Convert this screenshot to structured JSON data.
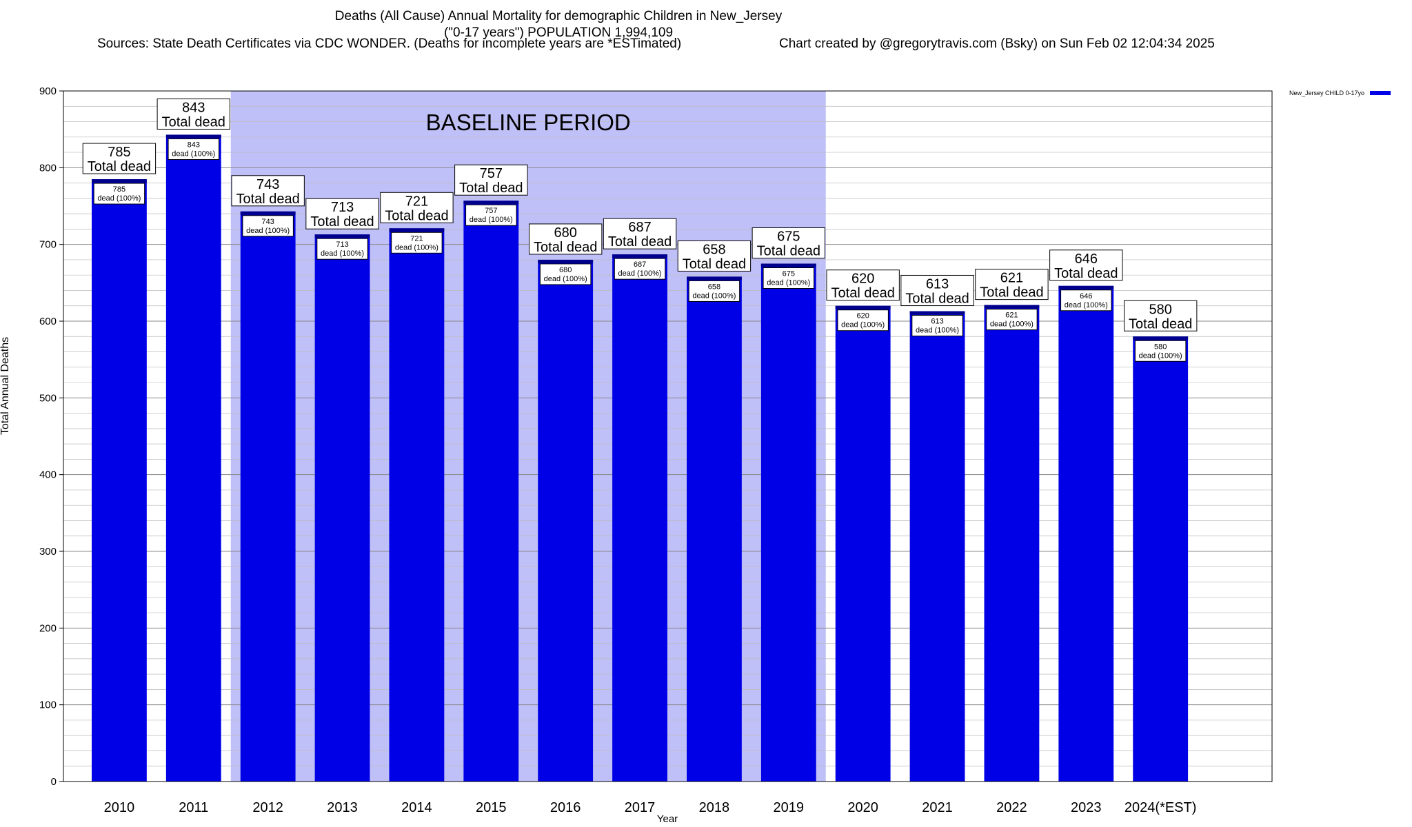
{
  "title": {
    "line1": "Deaths (All Cause) Annual Mortality for demographic Children in New_Jersey",
    "line2": "(\"0-17 years\") POPULATION 1,994,109",
    "sources": "Sources: State Death Certificates via CDC WONDER. (Deaths for incomplete years are *ESTimated)",
    "credit": "Chart created by @gregorytravis.com (Bsky) on Sun Feb 02 12:04:34 2025"
  },
  "legend": {
    "label": "New_Jersey CHILD 0-17yo"
  },
  "colors": {
    "bar": "#0000e6",
    "bar_edge": "#00008c",
    "baseline_fill": "#c0c0f8"
  },
  "chart_data": {
    "type": "bar",
    "categories": [
      "2010",
      "2011",
      "2012",
      "2013",
      "2014",
      "2015",
      "2016",
      "2017",
      "2018",
      "2019",
      "2020",
      "2021",
      "2022",
      "2023",
      "2024(*EST)"
    ],
    "series": [
      {
        "name": "New_Jersey CHILD 0-17yo",
        "values": [
          785,
          843,
          743,
          713,
          721,
          757,
          680,
          687,
          658,
          675,
          620,
          613,
          621,
          646,
          580
        ]
      }
    ],
    "xlabel": "Year",
    "ylabel": "Total Annual Deaths",
    "ylim": [
      0,
      900
    ],
    "yticks": [
      0,
      100,
      200,
      300,
      400,
      500,
      600,
      700,
      800,
      900
    ],
    "grid": true,
    "legend_position": "top-right",
    "bar_label_top": "Total dead",
    "bar_label_inner": "dead (100%)",
    "annotation": {
      "text": "BASELINE PERIOD",
      "from": "2012",
      "to": "2019"
    }
  }
}
